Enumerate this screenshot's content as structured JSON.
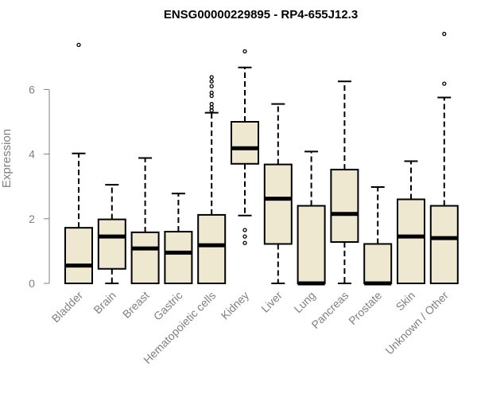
{
  "chart_data": {
    "type": "boxplot",
    "title": "ENSG00000229895 - RP4-655J12.3",
    "xlabel": "",
    "ylabel": "Expression",
    "ylim": [
      0,
      7.8
    ],
    "yticks": [
      0,
      2,
      4,
      6
    ],
    "grid": false,
    "colors": {
      "box_fill": "#EEE8D0",
      "stroke": "#000000",
      "axis_text": "#808080"
    },
    "categories": [
      "Bladder",
      "Brain",
      "Breast",
      "Gastric",
      "Hematopoietic cells",
      "Kidney",
      "Liver",
      "Lung",
      "Pancreas",
      "Prostate",
      "Skin",
      "Unknown / Other"
    ],
    "boxes": [
      {
        "label": "Bladder",
        "whisker_low": 0,
        "q1": 0,
        "median": 0.55,
        "q3": 1.72,
        "whisker_high": 4.02,
        "outliers": [
          7.38
        ]
      },
      {
        "label": "Brain",
        "whisker_low": 0,
        "q1": 0.45,
        "median": 1.45,
        "q3": 1.98,
        "whisker_high": 3.05,
        "outliers": []
      },
      {
        "label": "Breast",
        "whisker_low": 0,
        "q1": 0,
        "median": 1.08,
        "q3": 1.58,
        "whisker_high": 3.88,
        "outliers": []
      },
      {
        "label": "Gastric",
        "whisker_low": 0,
        "q1": 0,
        "median": 0.95,
        "q3": 1.6,
        "whisker_high": 2.78,
        "outliers": []
      },
      {
        "label": "Hematopoietic cells",
        "whisker_low": 0,
        "q1": 0,
        "median": 1.18,
        "q3": 2.12,
        "whisker_high": 5.28,
        "outliers": [
          5.35,
          5.45,
          5.55,
          5.8,
          5.9,
          6.1,
          6.25,
          6.38
        ]
      },
      {
        "label": "Kidney",
        "whisker_low": 2.1,
        "q1": 3.7,
        "median": 4.18,
        "q3": 5.0,
        "whisker_high": 6.68,
        "outliers": [
          1.25,
          1.45,
          1.65,
          7.18
        ]
      },
      {
        "label": "Liver",
        "whisker_low": 0,
        "q1": 1.22,
        "median": 2.62,
        "q3": 3.68,
        "whisker_high": 5.55,
        "outliers": []
      },
      {
        "label": "Lung",
        "whisker_low": 0,
        "q1": 0,
        "median": 0,
        "q3": 2.4,
        "whisker_high": 4.08,
        "outliers": []
      },
      {
        "label": "Pancreas",
        "whisker_low": 0,
        "q1": 1.28,
        "median": 2.15,
        "q3": 3.52,
        "whisker_high": 6.25,
        "outliers": []
      },
      {
        "label": "Prostate",
        "whisker_low": 0,
        "q1": 0,
        "median": 0,
        "q3": 1.22,
        "whisker_high": 2.98,
        "outliers": []
      },
      {
        "label": "Skin",
        "whisker_low": 0,
        "q1": 0,
        "median": 1.45,
        "q3": 2.6,
        "whisker_high": 3.78,
        "outliers": []
      },
      {
        "label": "Unknown / Other",
        "whisker_low": 0,
        "q1": 0,
        "median": 1.4,
        "q3": 2.4,
        "whisker_high": 5.75,
        "outliers": [
          6.18,
          7.72
        ]
      }
    ]
  }
}
